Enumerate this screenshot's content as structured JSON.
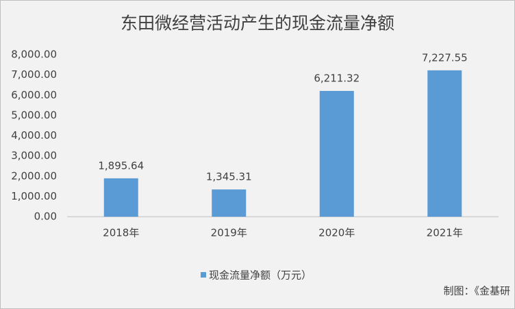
{
  "chart_data": {
    "type": "bar",
    "title": "东田微经营活动产生的现金流量净额",
    "categories": [
      "2018年",
      "2019年",
      "2020年",
      "2021年"
    ],
    "series": [
      {
        "name": "现金流量净额（万元）",
        "color": "#5b9bd5",
        "values": [
          1895.64,
          1345.31,
          6211.32,
          7227.55
        ],
        "value_labels": [
          "1,895.64",
          "1,345.31",
          "6,211.32",
          "7,227.55"
        ]
      }
    ],
    "ylim": [
      0,
      8000
    ],
    "yticks": [
      {
        "value": 0,
        "label": "0.00"
      },
      {
        "value": 1000,
        "label": "1,000.00"
      },
      {
        "value": 2000,
        "label": "2,000.00"
      },
      {
        "value": 3000,
        "label": "3,000.00"
      },
      {
        "value": 4000,
        "label": "4,000.00"
      },
      {
        "value": 5000,
        "label": "5,000.00"
      },
      {
        "value": 6000,
        "label": "6,000.00"
      },
      {
        "value": 7000,
        "label": "7,000.00"
      },
      {
        "value": 8000,
        "label": "8,000.00"
      }
    ],
    "grid": false,
    "legend": "bottom",
    "annotation": "制图：《金基研"
  }
}
